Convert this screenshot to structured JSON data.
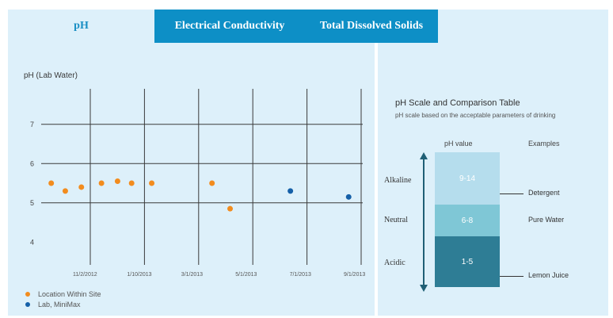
{
  "tabs": [
    {
      "label": "pH",
      "active": true
    },
    {
      "label": "Electrical Conductivity",
      "active": false
    },
    {
      "label": "Total Dissolved Solids",
      "active": false
    }
  ],
  "colors": {
    "accent": "#0d8fc6",
    "panel_bg": "#ddf0fa",
    "orange_series": "#f28c1e",
    "blue_series": "#1560a8",
    "alkaline_block": "#b5dded",
    "neutral_block": "#7fc7d6",
    "acidic_block": "#2e7d95"
  },
  "chart_data": {
    "type": "scatter",
    "ylabel": "pH (Lab Water)",
    "y_ticks": [
      "7",
      "6",
      "5",
      "4"
    ],
    "ylim": [
      3.5,
      7.5
    ],
    "x_ticks": [
      "11/2/2012",
      "1/10/2013",
      "3/1/2013",
      "5/1/2013",
      "7/1/2013",
      "9/1/2013"
    ],
    "grid": true,
    "series": [
      {
        "name": "Location Within Site",
        "color": "#f28c1e",
        "points": [
          {
            "x": 0.5,
            "y": 5.5
          },
          {
            "x": 1.2,
            "y": 5.3
          },
          {
            "x": 2.0,
            "y": 5.4
          },
          {
            "x": 3.0,
            "y": 5.5
          },
          {
            "x": 3.8,
            "y": 5.55
          },
          {
            "x": 4.5,
            "y": 5.5
          },
          {
            "x": 5.5,
            "y": 5.5
          },
          {
            "x": 8.5,
            "y": 5.5
          },
          {
            "x": 9.4,
            "y": 4.85
          }
        ]
      },
      {
        "name": "Lab, MiniMax",
        "color": "#1560a8",
        "points": [
          {
            "x": 12.4,
            "y": 5.3
          },
          {
            "x": 15.3,
            "y": 5.15
          }
        ]
      }
    ]
  },
  "scale_panel": {
    "title": "pH Scale and Comparison Table",
    "subtitle": "pH scale based on the acceptable parameters of drinking",
    "col_example_header": "Examples",
    "col_scale_header": "pH value",
    "categories": [
      {
        "label": "Alkaline",
        "value": "9-14",
        "example": "Detergent"
      },
      {
        "label": "Neutral",
        "value": "6-8",
        "example": "Pure Water"
      },
      {
        "label": "Acidic",
        "value": "1-5",
        "example": "Lemon Juice"
      }
    ]
  }
}
